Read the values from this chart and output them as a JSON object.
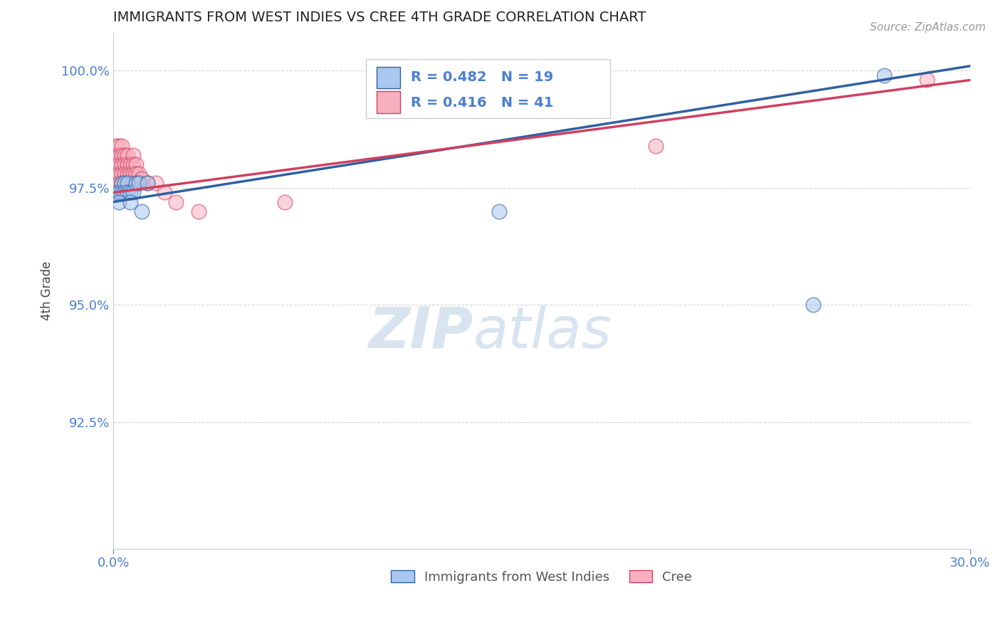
{
  "title": "IMMIGRANTS FROM WEST INDIES VS CREE 4TH GRADE CORRELATION CHART",
  "source": "Source: ZipAtlas.com",
  "ylabel": "4th Grade",
  "legend_label_blue": "Immigrants from West Indies",
  "legend_label_pink": "Cree",
  "r_blue": 0.482,
  "n_blue": 19,
  "r_pink": 0.416,
  "n_pink": 41,
  "xlim": [
    0.0,
    0.3
  ],
  "ylim": [
    0.898,
    1.008
  ],
  "yticks": [
    0.925,
    0.95,
    0.975,
    1.0
  ],
  "ytick_labels": [
    "92.5%",
    "95.0%",
    "97.5%",
    "100.0%"
  ],
  "xtick_labels": [
    "0.0%",
    "30.0%"
  ],
  "xticks": [
    0.0,
    0.3
  ],
  "color_blue": "#A8C8F0",
  "color_pink": "#F8B0C0",
  "line_blue": "#3060A0",
  "line_pink": "#D04060",
  "tick_color": "#4A7FD0",
  "grid_color": "#C8C8C8",
  "title_color": "#222222",
  "watermark_color": "#D8E4F0",
  "blue_scatter_x": [
    0.001,
    0.002,
    0.003,
    0.003,
    0.004,
    0.004,
    0.005,
    0.005,
    0.006,
    0.007,
    0.008,
    0.009,
    0.012,
    0.135,
    0.245,
    0.27,
    0.002,
    0.006,
    0.01
  ],
  "blue_scatter_y": [
    0.974,
    0.974,
    0.976,
    0.974,
    0.976,
    0.974,
    0.976,
    0.974,
    0.974,
    0.974,
    0.976,
    0.976,
    0.976,
    0.97,
    0.95,
    0.999,
    0.972,
    0.972,
    0.97
  ],
  "pink_scatter_x": [
    0.001,
    0.001,
    0.001,
    0.001,
    0.002,
    0.002,
    0.002,
    0.002,
    0.002,
    0.003,
    0.003,
    0.003,
    0.003,
    0.003,
    0.004,
    0.004,
    0.004,
    0.004,
    0.005,
    0.005,
    0.005,
    0.006,
    0.006,
    0.006,
    0.007,
    0.007,
    0.007,
    0.007,
    0.008,
    0.008,
    0.009,
    0.009,
    0.01,
    0.012,
    0.015,
    0.018,
    0.022,
    0.03,
    0.06,
    0.19,
    0.285
  ],
  "pink_scatter_y": [
    0.984,
    0.982,
    0.98,
    0.978,
    0.984,
    0.982,
    0.98,
    0.978,
    0.976,
    0.984,
    0.982,
    0.98,
    0.978,
    0.976,
    0.982,
    0.98,
    0.978,
    0.976,
    0.982,
    0.98,
    0.978,
    0.98,
    0.978,
    0.976,
    0.982,
    0.98,
    0.978,
    0.976,
    0.98,
    0.978,
    0.978,
    0.976,
    0.977,
    0.976,
    0.976,
    0.974,
    0.972,
    0.97,
    0.972,
    0.984,
    0.998
  ]
}
